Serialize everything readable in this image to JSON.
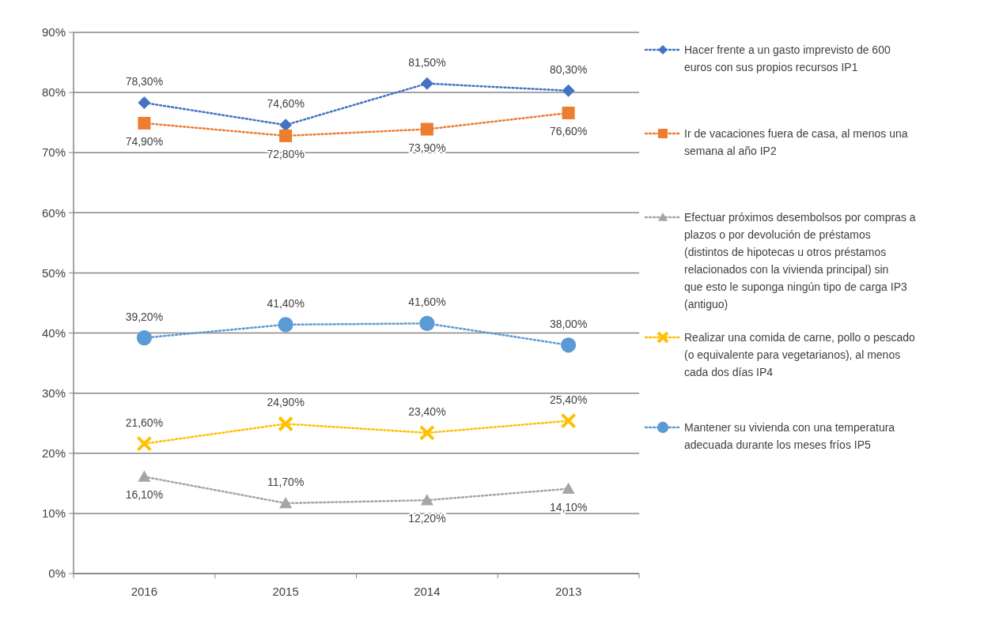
{
  "chart_data": {
    "type": "line",
    "categories": [
      "2016",
      "2015",
      "2014",
      "2013"
    ],
    "ylim": [
      0,
      90
    ],
    "yticks": [
      {
        "value": 0,
        "label": "0%"
      },
      {
        "value": 10,
        "label": "10%"
      },
      {
        "value": 20,
        "label": "20%"
      },
      {
        "value": 30,
        "label": "30%"
      },
      {
        "value": 40,
        "label": "40%"
      },
      {
        "value": 50,
        "label": "50%"
      },
      {
        "value": 60,
        "label": "60%"
      },
      {
        "value": 70,
        "label": "70%"
      },
      {
        "value": 80,
        "label": "80%"
      },
      {
        "value": 90,
        "label": "90%"
      }
    ],
    "grid": "y",
    "legend": "right",
    "line_style": "dotted",
    "series": [
      {
        "name": "Hacer frente a un gasto imprevisto de 600 euros con sus propios recursos  IP1",
        "color": "#4472c4",
        "marker": "diamond",
        "values": [
          78.3,
          74.6,
          81.5,
          80.3
        ],
        "value_labels": [
          "78,30%",
          "74,60%",
          "81,50%",
          "80,30%"
        ]
      },
      {
        "name": "Ir de vacaciones fuera de casa, al menos una semana al año  IP2",
        "color": "#ed7d31",
        "marker": "square",
        "values": [
          74.9,
          72.8,
          73.9,
          76.6
        ],
        "value_labels": [
          "74,90%",
          "72,80%",
          "73,90%",
          "76,60%"
        ]
      },
      {
        "name": "Efectuar próximos desembolsos por compras a plazos o por devolución de préstamos (distintos de hipotecas u otros préstamos relacionados con la vivienda principal) sin que esto le suponga ningún tipo de carga  IP3 (antiguo)",
        "color": "#a5a5a5",
        "marker": "triangle",
        "values": [
          16.1,
          11.7,
          12.2,
          14.1
        ],
        "value_labels": [
          "16,10%",
          "11,70%",
          "12,20%",
          "14,10%"
        ]
      },
      {
        "name": "Realizar una comida de carne, pollo o pescado (o equivalente para vegetarianos), al menos cada dos días  IP4",
        "color": "#ffc000",
        "marker": "cross",
        "values": [
          21.6,
          24.9,
          23.4,
          25.4
        ],
        "value_labels": [
          "21,60%",
          "24,90%",
          "23,40%",
          "25,40%"
        ]
      },
      {
        "name": "Mantener su vivienda con una temperatura adecuada durante los meses fríos  IP5",
        "color": "#5b9bd5",
        "marker": "circle",
        "values": [
          39.2,
          41.4,
          41.6,
          38.0
        ],
        "value_labels": [
          "39,20%",
          "41,40%",
          "41,60%",
          "38,00%"
        ]
      }
    ]
  }
}
